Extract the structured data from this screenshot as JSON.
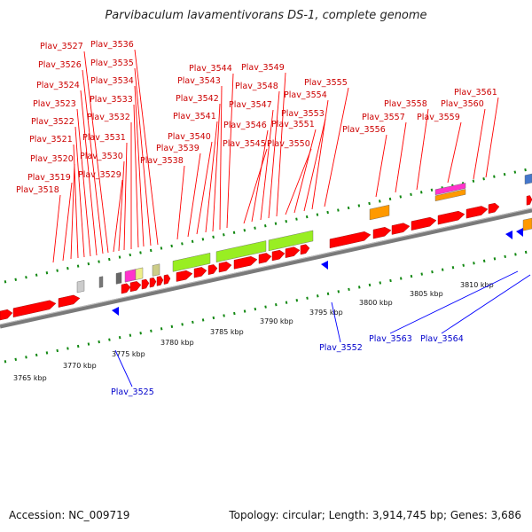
{
  "title": "Parvibaculum lavamentivorans DS-1, complete genome",
  "footer": {
    "accession": "Accession: NC_009719",
    "summary": "Topology: circular; Length: 3,914,745 bp; Genes: 3,686"
  },
  "colors": {
    "forward_gene": "#ff0000",
    "reverse_gene": "#0000ff",
    "forward_label": "#cc0000",
    "reverse_label": "#0000cc",
    "backbone": "#7f7f7f",
    "tick": "#118811",
    "green_block": "#99ee22",
    "orange_block": "#ff9900",
    "magenta_block": "#ff33cc"
  },
  "kbp_ticks": [
    "3765 kbp",
    "3770 kbp",
    "3775 kbp",
    "3780 kbp",
    "3785 kbp",
    "3790 kbp",
    "3795 kbp",
    "3800 kbp",
    "3805 kbp",
    "3810 kbp"
  ],
  "forward_labels": [
    "Plav_3518",
    "Plav_3519",
    "Plav_3520",
    "Plav_3521",
    "Plav_3522",
    "Plav_3523",
    "Plav_3524",
    "Plav_3526",
    "Plav_3527",
    "Plav_3529",
    "Plav_3530",
    "Plav_3531",
    "Plav_3532",
    "Plav_3533",
    "Plav_3534",
    "Plav_3535",
    "Plav_3536",
    "Plav_3538",
    "Plav_3539",
    "Plav_3540",
    "Plav_3541",
    "Plav_3542",
    "Plav_3543",
    "Plav_3544",
    "Plav_3545",
    "Plav_3546",
    "Plav_3547",
    "Plav_3548",
    "Plav_3549",
    "Plav_3550",
    "Plav_3551",
    "Plav_3553",
    "Plav_3554",
    "Plav_3555",
    "Plav_3556",
    "Plav_3557",
    "Plav_3558",
    "Plav_3559",
    "Plav_3560",
    "Plav_3561"
  ],
  "reverse_labels": [
    "Plav_3525",
    "Plav_3552",
    "Plav_3563",
    "Plav_3564"
  ]
}
